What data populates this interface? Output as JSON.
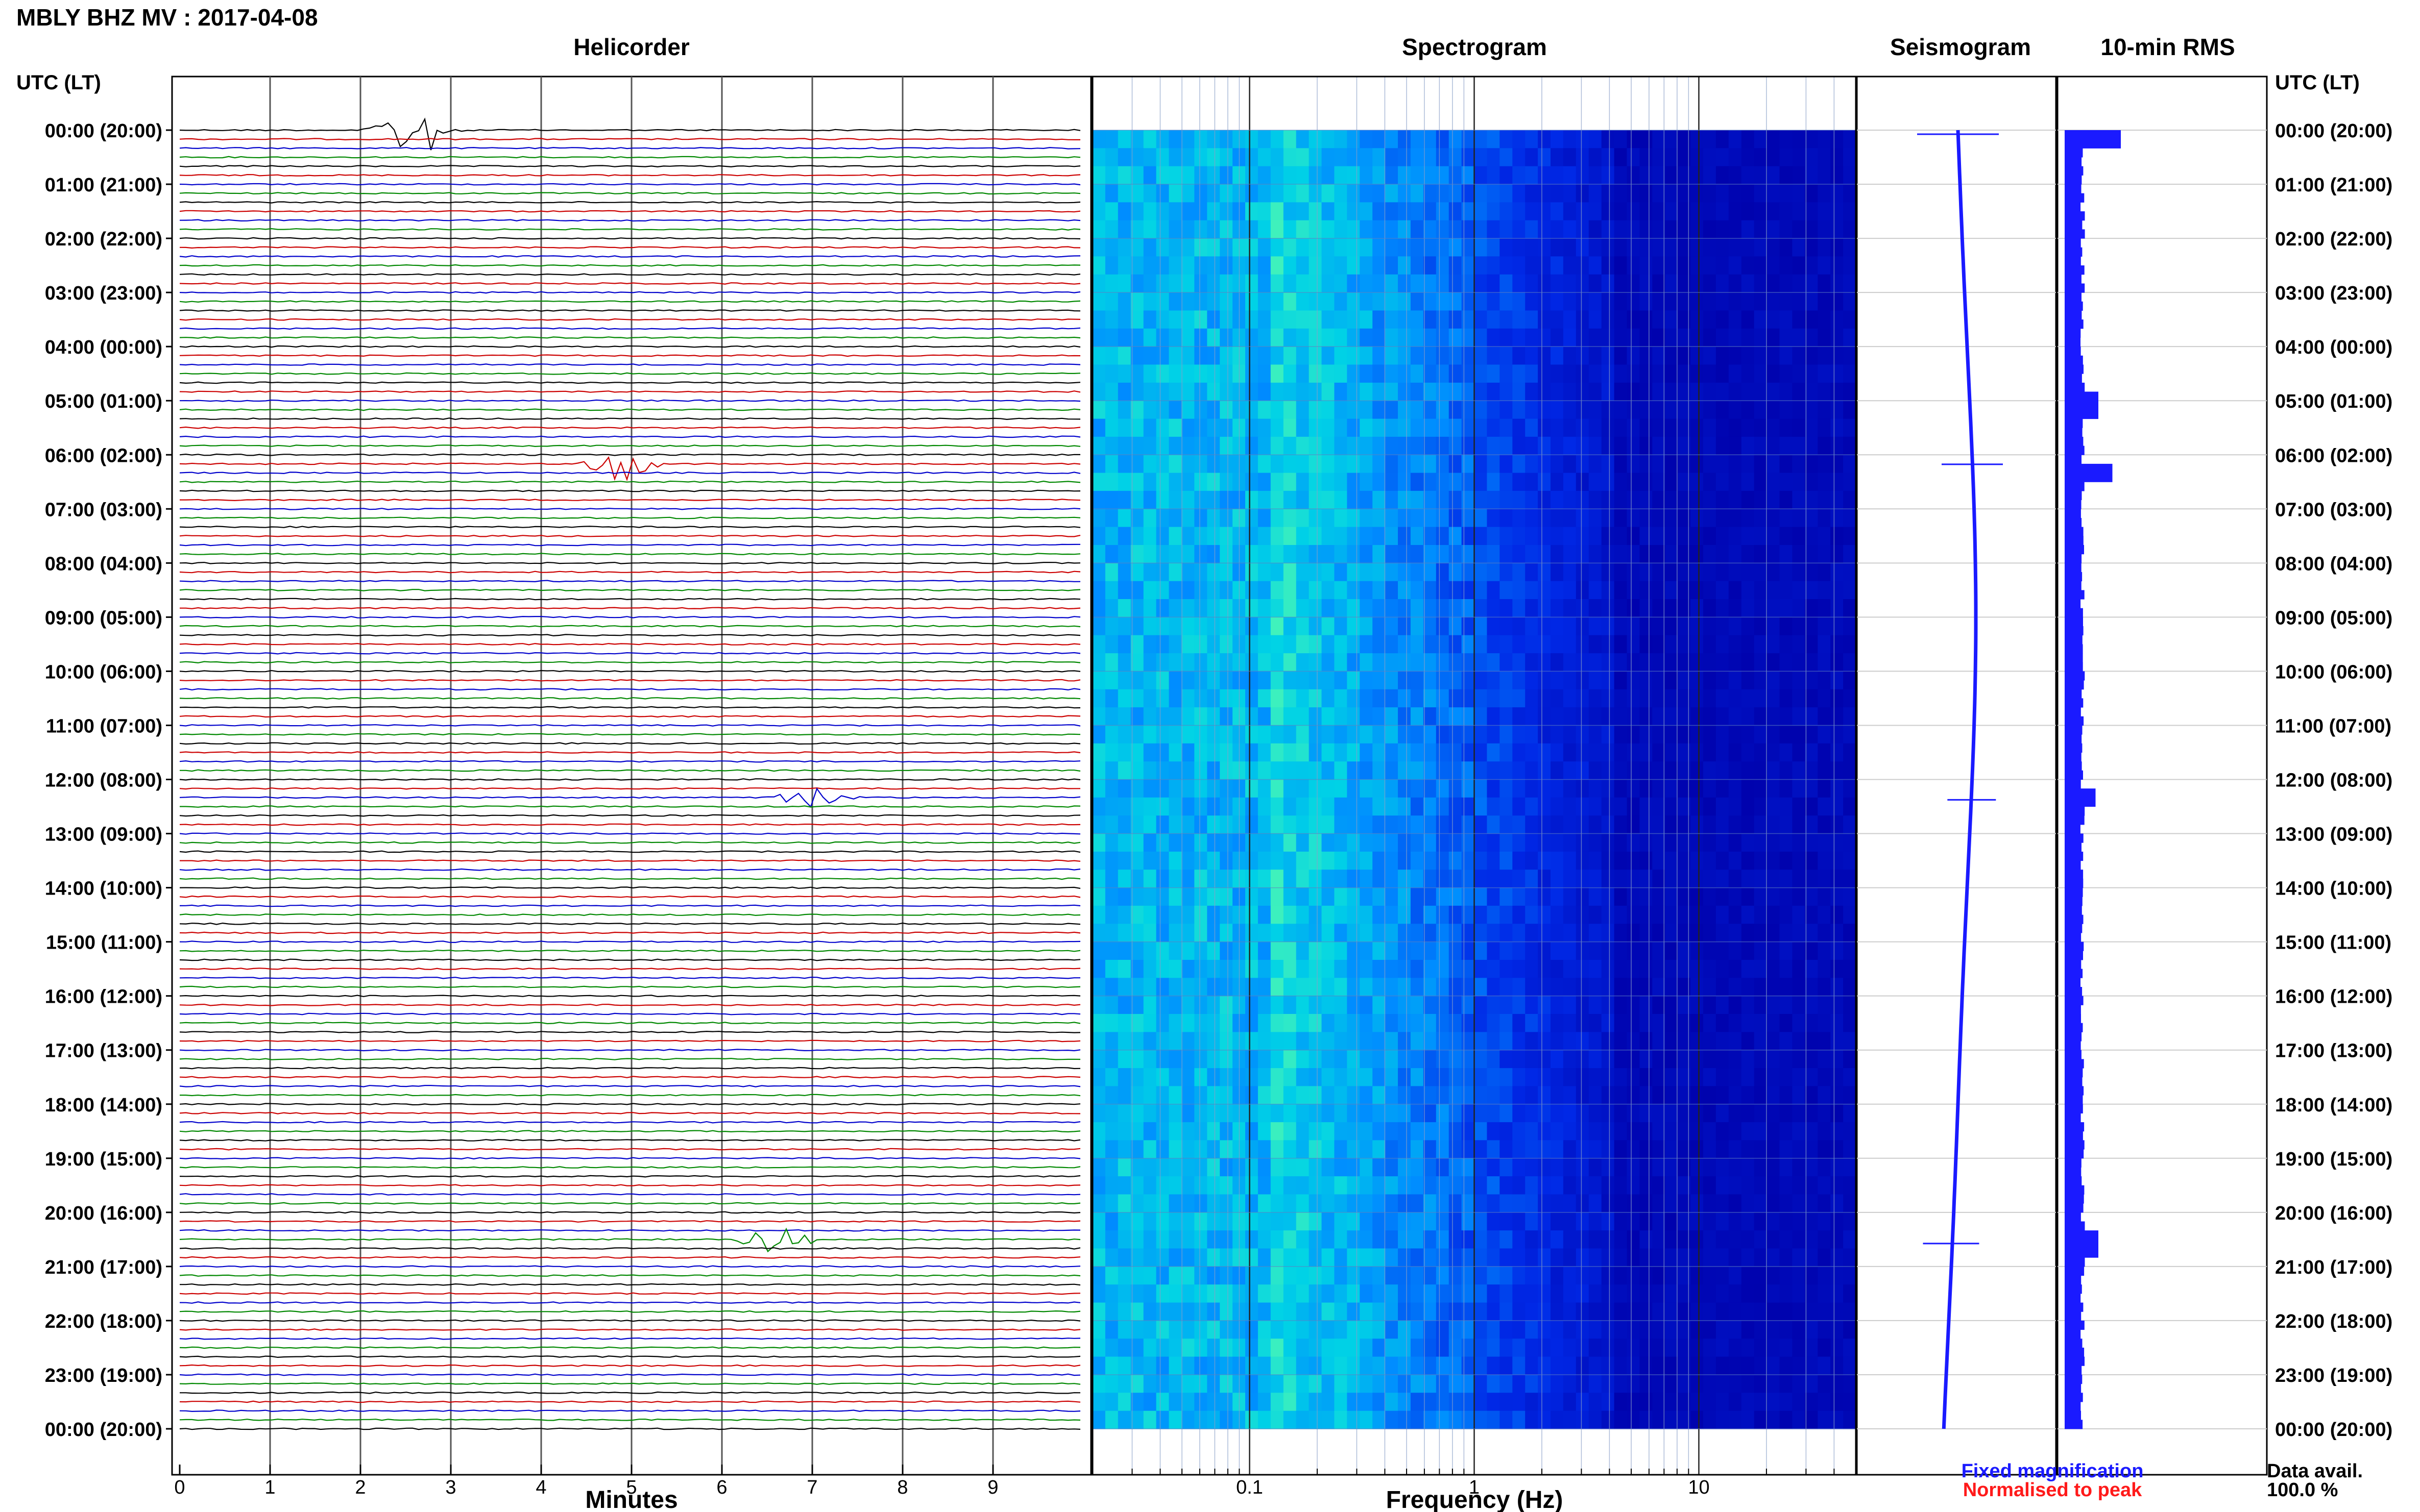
{
  "header": {
    "title": "MBLY BHZ MV : 2017-04-08",
    "utc_label_left": "UTC (LT)",
    "utc_label_right": "UTC (LT)"
  },
  "panels": {
    "helicorder": "Helicorder",
    "spectrogram": "Spectrogram",
    "seismogram": "Seismogram",
    "rms": "10-min RMS"
  },
  "axes": {
    "helicorder_xlabel": "Minutes",
    "spectrogram_xlabel": "Frequency (Hz)"
  },
  "legend": {
    "fixed": "Fixed magnification",
    "normalised": "Normalised to peak"
  },
  "availability": {
    "label": "Data avail.",
    "value": "100.0 %"
  },
  "colors": {
    "fixed": "#1a1aff",
    "normalised": "#ff1a1a",
    "trace_cycle": [
      "#000000",
      "#cc0000",
      "#0000cc",
      "#008800"
    ],
    "spectrogram_low": "#0000a8",
    "spectrogram_high": "#40ffd0"
  },
  "chart_data": {
    "type": "heatmap",
    "hour_labels": [
      "00:00 (20:00)",
      "01:00 (21:00)",
      "02:00 (22:00)",
      "03:00 (23:00)",
      "04:00 (00:00)",
      "05:00 (01:00)",
      "06:00 (02:00)",
      "07:00 (03:00)",
      "08:00 (04:00)",
      "09:00 (05:00)",
      "10:00 (06:00)",
      "11:00 (07:00)",
      "12:00 (08:00)",
      "13:00 (09:00)",
      "14:00 (10:00)",
      "15:00 (11:00)",
      "16:00 (12:00)",
      "17:00 (13:00)",
      "18:00 (14:00)",
      "19:00 (15:00)",
      "20:00 (16:00)",
      "21:00 (17:00)",
      "22:00 (18:00)",
      "23:00 (19:00)",
      "00:00 (20:00)"
    ],
    "minute_ticks": [
      0,
      1,
      2,
      3,
      4,
      5,
      6,
      7,
      8,
      9
    ],
    "helicorder_xlim": [
      0,
      10
    ],
    "traces_per_hour": 6,
    "frequency_ticks": [
      {
        "value": 0.1,
        "label": "0.1"
      },
      {
        "value": 1,
        "label": "1"
      },
      {
        "value": 10,
        "label": "10"
      }
    ],
    "frequency_range_hz": [
      0.02,
      50
    ],
    "events": [
      {
        "hour": 0.0,
        "minute": 2.6,
        "amplitude": 1.0
      },
      {
        "hour": 6.1,
        "minute": 4.9,
        "amplitude": 0.6
      },
      {
        "hour": 12.3,
        "minute": 7.0,
        "amplitude": 0.35
      },
      {
        "hour": 20.5,
        "minute": 6.6,
        "amplitude": 0.5
      }
    ],
    "rms_peaks": [
      {
        "hour": 0.1,
        "value": 1.0
      },
      {
        "hour": 5.0,
        "value": 0.6
      },
      {
        "hour": 6.2,
        "value": 0.85
      },
      {
        "hour": 12.3,
        "value": 0.55
      },
      {
        "hour": 20.5,
        "value": 0.6
      }
    ]
  }
}
